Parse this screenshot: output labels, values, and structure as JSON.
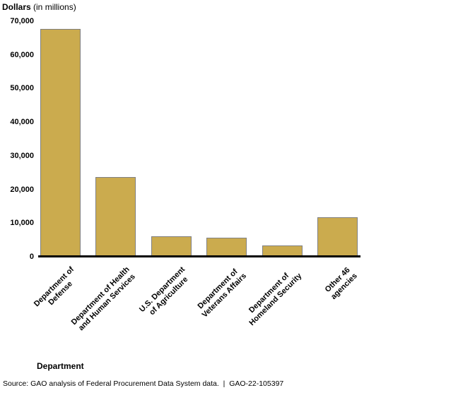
{
  "title": {
    "bold": "Dollars",
    "rest": " (in millions)"
  },
  "chart_data": {
    "type": "bar",
    "title": "Dollars (in millions)",
    "xlabel": "Department",
    "ylabel": "Dollars (in millions)",
    "ylim": [
      0,
      70000
    ],
    "grid": false,
    "legend": "none",
    "categories": [
      "Department of\nDefense",
      "Department of Health\nand Human Services",
      "U.S. Department\nof Agriculture",
      "Department of\nVeterans Affairs",
      "Department of\nHomeland Security",
      "Other 46\nagencies"
    ],
    "values": [
      67700,
      23700,
      6100,
      5600,
      3400,
      11700
    ],
    "ytick_values": [
      0,
      10000,
      20000,
      30000,
      40000,
      50000,
      60000,
      70000
    ],
    "ytick_labels": [
      "0",
      "10,000",
      "20,000",
      "30,000",
      "40,000",
      "50,000",
      "60,000",
      "70,000"
    ],
    "bar_color": "#cbab4e",
    "bar_border_color": "#808080",
    "axis_color": "#000000"
  },
  "axis": {
    "x_title": "Department"
  },
  "footer": {
    "source": "Source: GAO analysis of Federal Procurement Data System data.  |  GAO-22-105397"
  }
}
